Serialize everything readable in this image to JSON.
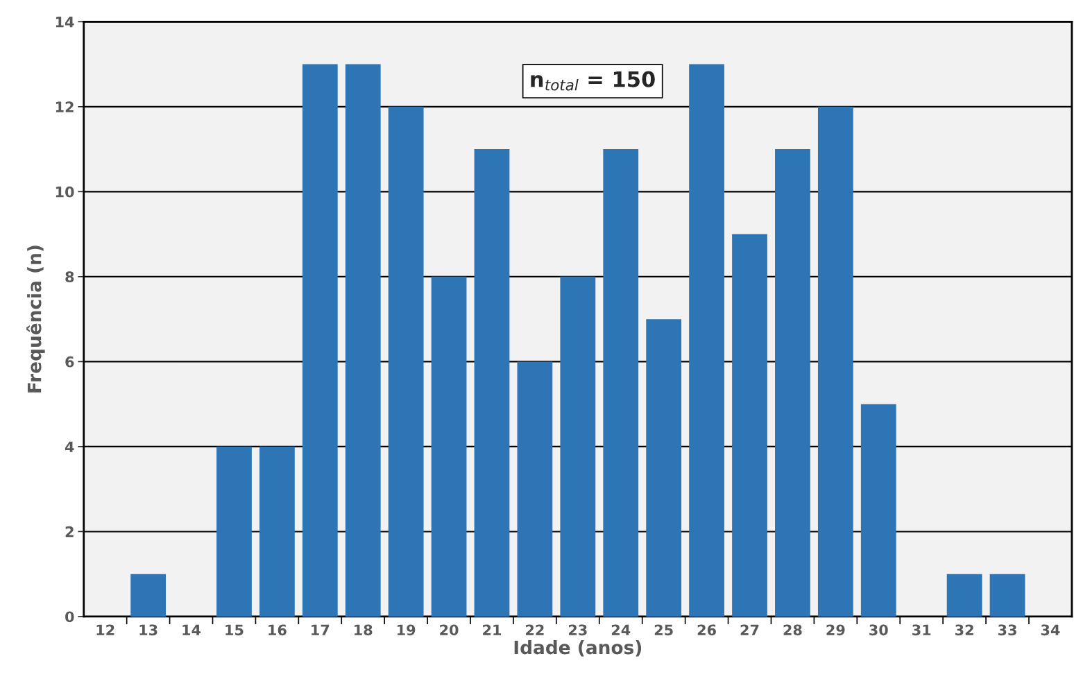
{
  "chart_data": {
    "type": "bar",
    "xlabel": "Idade (anos)",
    "ylabel": "Frequência (n)",
    "categories": [
      "12",
      "13",
      "14",
      "15",
      "16",
      "17",
      "18",
      "19",
      "20",
      "21",
      "22",
      "23",
      "24",
      "25",
      "26",
      "27",
      "28",
      "29",
      "30",
      "31",
      "32",
      "33",
      "34"
    ],
    "values": [
      0,
      1,
      0,
      4,
      4,
      13,
      13,
      12,
      8,
      11,
      6,
      8,
      11,
      7,
      13,
      9,
      11,
      12,
      5,
      0,
      1,
      1,
      0
    ],
    "color": "#2e75b6",
    "ylim": [
      0,
      14
    ],
    "yticks": [
      0,
      2,
      4,
      6,
      8,
      10,
      12,
      14
    ],
    "grid": "y",
    "annotations": [
      "n$_{total}$ = 150"
    ]
  }
}
